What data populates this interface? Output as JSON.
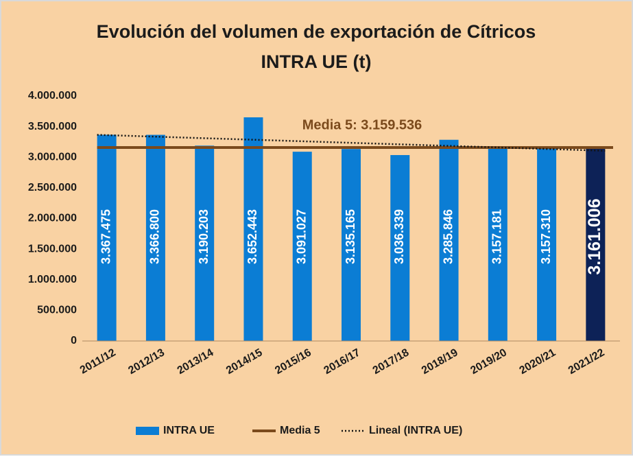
{
  "chart_data": {
    "type": "bar",
    "title": "Evolución del volumen de exportación de Cítricos",
    "subtitle": "INTRA UE (t)",
    "categories": [
      "2011/12",
      "2012/13",
      "2013/14",
      "2014/15",
      "2015/16",
      "2016/17",
      "2017/18",
      "2018/19",
      "2019/20",
      "2020/21",
      "2021/22"
    ],
    "series": [
      {
        "name": "INTRA UE",
        "type": "bar",
        "color": "#0b7dd4",
        "highlight_color": "#0d2257",
        "highlight_last": true,
        "values": [
          3367475,
          3366800,
          3190203,
          3652443,
          3091027,
          3135165,
          3036339,
          3285846,
          3157181,
          3157310,
          3161006
        ],
        "value_labels": [
          "3.367.475",
          "3.366.800",
          "3.190.203",
          "3.652.443",
          "3.091.027",
          "3.135.165",
          "3.036.339",
          "3.285.846",
          "3.157.181",
          "3.157.310",
          "3.161.006"
        ]
      },
      {
        "name": "Media 5",
        "type": "hline",
        "color": "#7b4a1c",
        "value": 3159536,
        "label": "Media 5: 3.159.536"
      },
      {
        "name": "Lineal (INTRA UE)",
        "type": "trendline",
        "of_series": 0,
        "color": "#111111",
        "dash": "dotted"
      }
    ],
    "ylim": [
      0,
      4000000
    ],
    "yticks": [
      0,
      {
        "value": 500000,
        "label": "500.000"
      },
      {
        "value": 1000000,
        "label": "1.000.000"
      },
      {
        "value": 1500000,
        "label": "1.500.000"
      },
      {
        "value": 2000000,
        "label": "2.000.000"
      },
      {
        "value": 2500000,
        "label": "2.500.000"
      },
      {
        "value": 3000000,
        "label": "3.000.000"
      },
      {
        "value": 3500000,
        "label": "3.500.000"
      },
      {
        "value": 4000000,
        "label": "4.000.000"
      }
    ],
    "grid": false,
    "legend": "bottom",
    "background": "#f9d2a3"
  }
}
